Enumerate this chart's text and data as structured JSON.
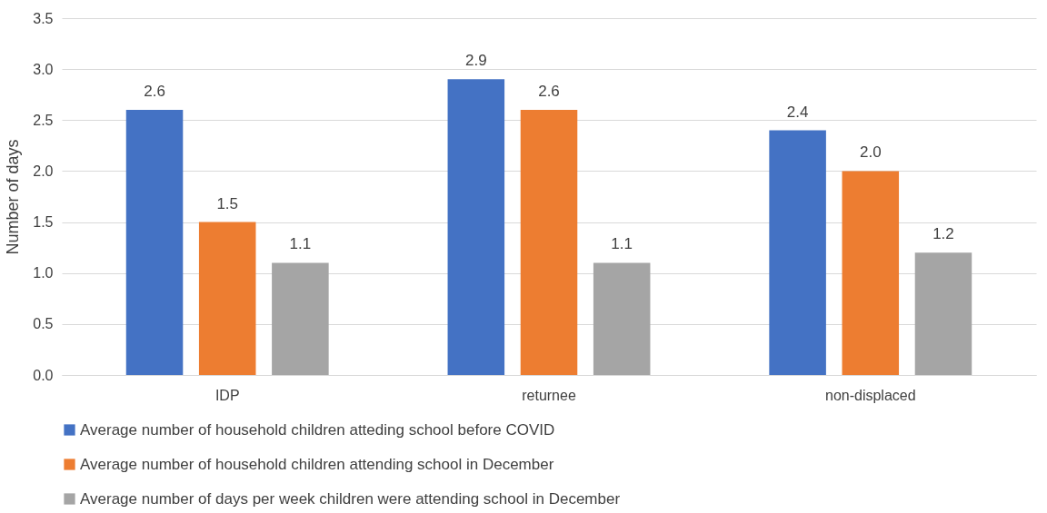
{
  "chart_data": {
    "type": "bar",
    "ylabel": "Number of days",
    "categories": [
      "IDP",
      "returnee",
      "non-displaced"
    ],
    "series": [
      {
        "name": "Average number of household children atteding school before COVID",
        "color": "#4472c4",
        "values": [
          2.6,
          2.9,
          2.4
        ]
      },
      {
        "name": "Average number of household children attending school in December",
        "color": "#ed7d31",
        "values": [
          1.5,
          2.6,
          2.0
        ]
      },
      {
        "name": "Average number of days per week children were attending school in December",
        "color": "#a5a5a5",
        "values": [
          1.1,
          1.1,
          1.2
        ]
      }
    ],
    "ylim": [
      0,
      3.5
    ],
    "yticks": [
      {
        "value": 0,
        "label": "0.0"
      },
      {
        "value": 0.5,
        "label": "0.5"
      },
      {
        "value": 1,
        "label": "1.0"
      },
      {
        "value": 1.5,
        "label": "1.5"
      },
      {
        "value": 2,
        "label": "2.0"
      },
      {
        "value": 2.5,
        "label": "2.5"
      },
      {
        "value": 3,
        "label": "3.0"
      },
      {
        "value": 3.5,
        "label": "3.5"
      }
    ],
    "value_labels": [
      "2.6",
      "2.9",
      "2.4",
      "1.5",
      "2.6",
      "2.0",
      "1.1",
      "1.1",
      "1.2"
    ],
    "grid": "y",
    "legend": "bottom"
  }
}
